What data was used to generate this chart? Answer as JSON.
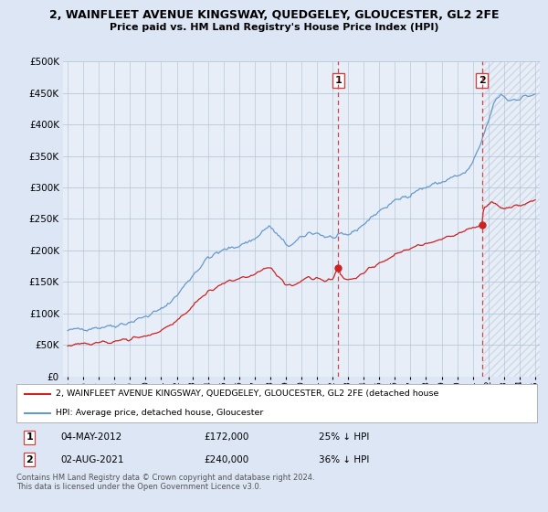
{
  "title": "2, WAINFLEET AVENUE KINGSWAY, QUEDGELEY, GLOUCESTER, GL2 2FE",
  "subtitle": "Price paid vs. HM Land Registry's House Price Index (HPI)",
  "background_color": "#dce6f5",
  "plot_bg": "#e8eef8",
  "legend_line1": "2, WAINFLEET AVENUE KINGSWAY, QUEDGELEY, GLOUCESTER, GL2 2FE (detached house",
  "legend_line2": "HPI: Average price, detached house, Gloucester",
  "annotation1_date": "04-MAY-2012",
  "annotation1_price": "£172,000",
  "annotation1_hpi": "25% ↓ HPI",
  "annotation2_date": "02-AUG-2021",
  "annotation2_price": "£240,000",
  "annotation2_hpi": "36% ↓ HPI",
  "footer": "Contains HM Land Registry data © Crown copyright and database right 2024.\nThis data is licensed under the Open Government Licence v3.0.",
  "hpi_color": "#6699cc",
  "price_color": "#cc2222",
  "dashed_line_color": "#cc4444",
  "ylim": [
    0,
    500000
  ],
  "yticks": [
    0,
    50000,
    100000,
    150000,
    200000,
    250000,
    300000,
    350000,
    400000,
    450000,
    500000
  ],
  "xstart": 1995,
  "xend": 2025,
  "sale1_year": 2012.37,
  "sale1_price": 172000,
  "sale2_year": 2021.58,
  "sale2_price": 240000
}
